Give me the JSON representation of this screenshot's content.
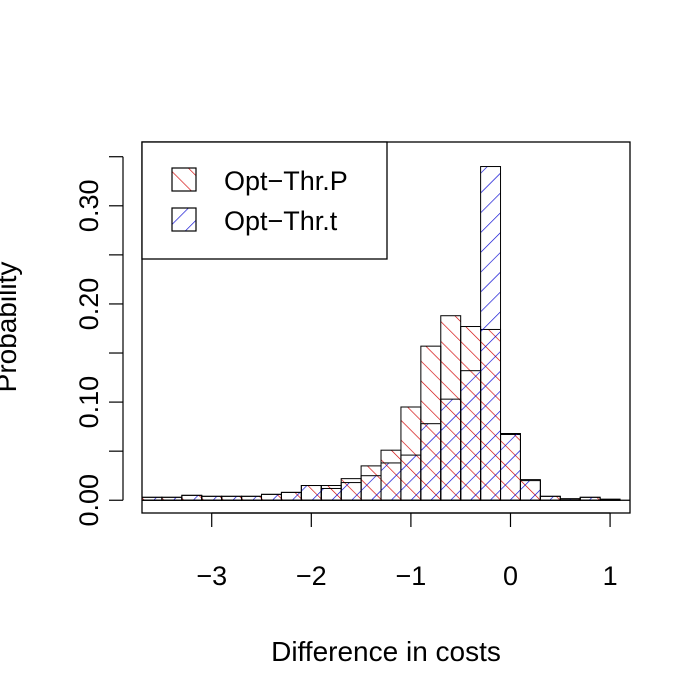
{
  "chart_data": {
    "type": "histogram",
    "title": "",
    "xlabel": "Difference in costs",
    "ylabel": "Probability",
    "xlim": [
      -3.7,
      1.2
    ],
    "ylim": [
      -0.013,
      0.365
    ],
    "bin_width": 0.2,
    "bin_start": -3.7,
    "x_ticks": [
      -3,
      -2,
      -1,
      0,
      1
    ],
    "x_tick_labels": [
      "−3",
      "−2",
      "−1",
      "0",
      "1"
    ],
    "y_ticks": [
      0.0,
      0.05,
      0.1,
      0.15,
      0.2,
      0.25,
      0.3,
      0.35
    ],
    "y_tick_labels": [
      "0.00",
      "",
      "0.10",
      "",
      "0.20",
      "",
      "0.30",
      ""
    ],
    "legend_position": "top-left",
    "series": [
      {
        "name": "Opt−Thr.P",
        "color": "#d00000",
        "hatch": "forward",
        "values": [
          0.003,
          0.003,
          0.005,
          0.004,
          0.004,
          0.004,
          0.006,
          0.008,
          0.015,
          0.015,
          0.022,
          0.035,
          0.051,
          0.095,
          0.157,
          0.188,
          0.177,
          0.174,
          0.067,
          0.021,
          0.004,
          0.0015,
          0.003,
          0.001
        ]
      },
      {
        "name": "Opt−Thr.t",
        "color": "#0000d0",
        "hatch": "backward",
        "values": [
          0.003,
          0.003,
          0.005,
          0.004,
          0.004,
          0.004,
          0.006,
          0.008,
          0.015,
          0.012,
          0.018,
          0.025,
          0.038,
          0.046,
          0.078,
          0.103,
          0.132,
          0.34,
          0.068,
          0.02,
          0.004,
          0.0015,
          0.003,
          0.001
        ]
      }
    ]
  }
}
